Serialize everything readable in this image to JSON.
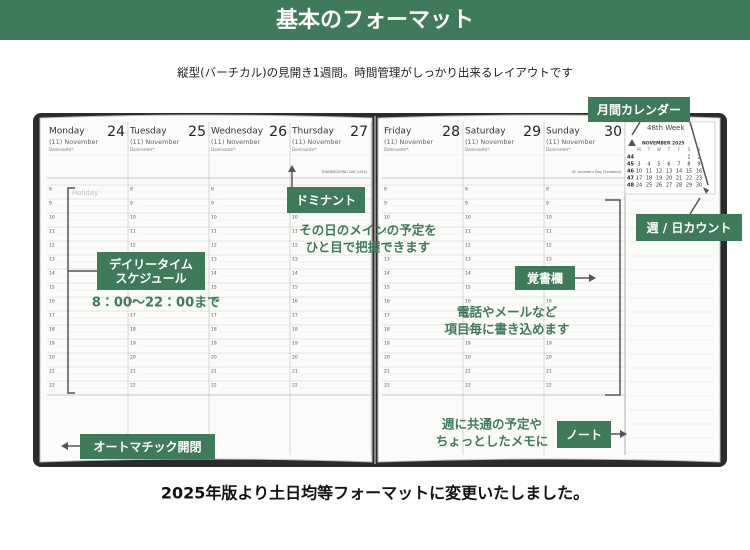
{
  "header": {
    "title": "基本のフォーマット",
    "subtitle": "縦型(バーチカル)の見開き1週間。時間管理がしっかり出来るレイアウトです"
  },
  "days": [
    {
      "name": "Monday",
      "date": "24",
      "month": "(11) November",
      "dominante": "Dominante*:",
      "note": "Holiday"
    },
    {
      "name": "Tuesday",
      "date": "25",
      "month": "(11) November",
      "dominante": "Dominante*:"
    },
    {
      "name": "Wednesday",
      "date": "26",
      "month": "(11) November",
      "dominante": "Dominante*:"
    },
    {
      "name": "Thursday",
      "date": "27",
      "month": "(11) November",
      "dominante": "Dominante*:",
      "note": "THANKSGIVING DAY (USA)"
    },
    {
      "name": "Friday",
      "date": "28",
      "month": "(11) November",
      "dominante": "Dominante*:"
    },
    {
      "name": "Saturday",
      "date": "29",
      "month": "(11) November",
      "dominante": "Dominante*:"
    },
    {
      "name": "Sunday",
      "date": "30",
      "month": "(11) November",
      "dominante": "Dominante*:",
      "note": "St. Andrew's Day (Scotland)"
    }
  ],
  "hours": [
    8,
    9,
    10,
    11,
    12,
    13,
    14,
    15,
    16,
    17,
    18,
    19,
    20,
    21,
    22
  ],
  "calendar": {
    "week_label": "48th Week",
    "month": "NOVEMBER 2025",
    "weekdays": [
      "M",
      "T",
      "W",
      "T",
      "F",
      "S",
      "S"
    ],
    "weeks": [
      {
        "week": "44",
        "days": [
          "1",
          "2"
        ]
      },
      {
        "week": "45",
        "days": [
          "3",
          "4",
          "5",
          "6",
          "7",
          "8",
          "9"
        ]
      },
      {
        "week": "46",
        "days": [
          "10",
          "11",
          "12",
          "13",
          "14",
          "15",
          "16"
        ]
      },
      {
        "week": "47",
        "days": [
          "17",
          "18",
          "19",
          "20",
          "21",
          "22",
          "23"
        ]
      },
      {
        "week": "48",
        "days": [
          "24",
          "25",
          "26",
          "27",
          "28",
          "29",
          "30"
        ]
      }
    ]
  },
  "labels": {
    "monthly_calendar": [
      "月間カレンダー"
    ],
    "dominant": [
      "ドミナント"
    ],
    "daily_schedule": [
      "デイリータイム",
      "スケジュール"
    ],
    "week_day_count": [
      "週 / 日カウント"
    ],
    "memo": [
      "覚書欄"
    ],
    "note": [
      "ノート"
    ],
    "auto_open": [
      "オートマチック開閉"
    ]
  },
  "notes": {
    "hours_range": [
      "8：00〜22：00まで"
    ],
    "dominant_desc": [
      "その日のメインの予定を",
      "ひと目で把握できます"
    ],
    "memo_desc": [
      "電話やメールなど",
      "項目毎に書き込めます"
    ],
    "note_desc": [
      "週に共通の予定や",
      "ちょっとしたメモに"
    ]
  },
  "footer": "2025年版より土日均等フォーマットに変更いたしました。"
}
